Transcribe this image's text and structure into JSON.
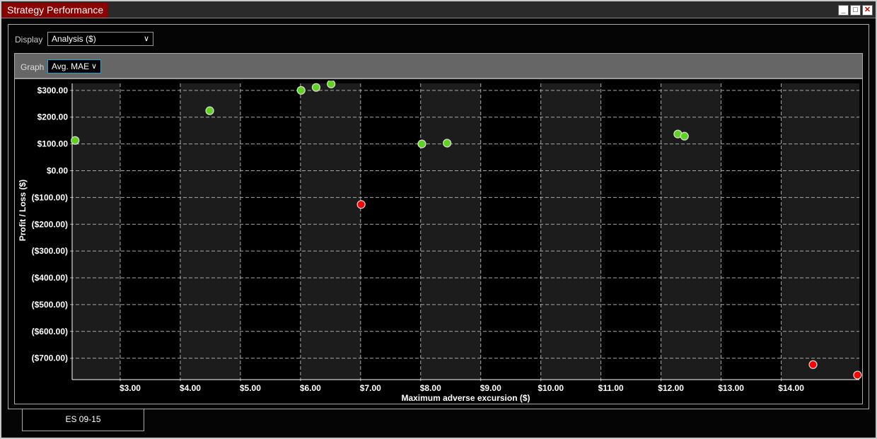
{
  "window": {
    "title": "Strategy Performance",
    "buttons": [
      "minimize",
      "maximize",
      "close"
    ]
  },
  "display": {
    "label": "Display",
    "value": "Analysis ($)"
  },
  "graph": {
    "label": "Graph",
    "value": "Avg. MAE"
  },
  "tab": {
    "label": "ES 09-15"
  },
  "chart_data": {
    "type": "scatter",
    "xlabel": "Maximum adverse excursion ($)",
    "ylabel": "Profit / Loss ($)",
    "xlim": [
      2.2,
      15.3
    ],
    "ylim": [
      -780,
      326
    ],
    "x_ticks": [
      3,
      4,
      5,
      6,
      7,
      8,
      9,
      10,
      11,
      12,
      13,
      14
    ],
    "x_tick_labels": [
      "$3.00",
      "$4.00",
      "$5.00",
      "$6.00",
      "$7.00",
      "$8.00",
      "$9.00",
      "$10.00",
      "$11.00",
      "$12.00",
      "$13.00",
      "$14.00"
    ],
    "y_ticks": [
      300,
      200,
      100,
      0,
      -100,
      -200,
      -300,
      -400,
      -500,
      -600,
      -700
    ],
    "y_tick_labels": [
      "$300.00",
      "$200.00",
      "$100.00",
      "$0.00",
      "($100.00)",
      "($200.00)",
      "($300.00)",
      "($400.00)",
      "($500.00)",
      "($600.00)",
      "($700.00)"
    ],
    "grid": true,
    "colors": {
      "profit": "#5fd31f",
      "loss": "#ff0000"
    },
    "points": [
      {
        "x": 2.25,
        "y": 113
      },
      {
        "x": 4.49,
        "y": 224
      },
      {
        "x": 6.01,
        "y": 300
      },
      {
        "x": 6.26,
        "y": 311
      },
      {
        "x": 6.51,
        "y": 324
      },
      {
        "x": 7.01,
        "y": -126
      },
      {
        "x": 8.02,
        "y": 100
      },
      {
        "x": 8.44,
        "y": 103
      },
      {
        "x": 12.28,
        "y": 137
      },
      {
        "x": 12.39,
        "y": 129
      },
      {
        "x": 14.53,
        "y": -724
      },
      {
        "x": 15.27,
        "y": -763
      }
    ]
  }
}
